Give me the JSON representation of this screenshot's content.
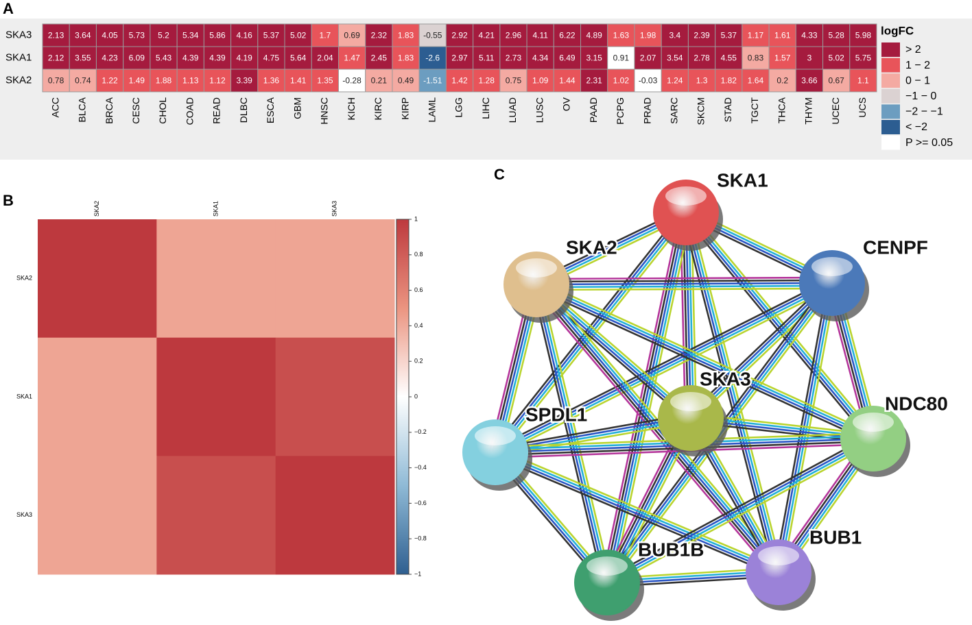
{
  "panels": [
    "A",
    "B",
    "C"
  ],
  "chart_data": [
    {
      "type": "heatmap",
      "rows": [
        "SKA3",
        "SKA1",
        "SKA2"
      ],
      "columns": [
        "ACC",
        "BLCA",
        "BRCA",
        "CESC",
        "CHOL",
        "COAD",
        "READ",
        "DLBC",
        "ESCA",
        "GBM",
        "HNSC",
        "KICH",
        "KIRC",
        "KIRP",
        "LAML",
        "LGG",
        "LIHC",
        "LUAD",
        "LUSC",
        "OV",
        "PAAD",
        "PCPG",
        "PRAD",
        "SARC",
        "SKCM",
        "STAD",
        "TGCT",
        "THCA",
        "THYM",
        "UCEC",
        "UCS"
      ],
      "values": [
        [
          2.13,
          3.64,
          4.05,
          5.73,
          5.2,
          5.34,
          5.86,
          4.16,
          5.37,
          5.02,
          1.7,
          0.69,
          2.32,
          1.83,
          -0.55,
          2.92,
          4.21,
          2.96,
          4.11,
          6.22,
          4.89,
          1.63,
          1.98,
          3.4,
          2.39,
          5.37,
          1.17,
          1.61,
          4.33,
          5.28,
          5.98
        ],
        [
          2.12,
          3.55,
          4.23,
          6.09,
          5.43,
          4.39,
          4.39,
          4.19,
          4.75,
          5.64,
          2.04,
          1.47,
          2.45,
          1.83,
          -2.6,
          2.97,
          5.11,
          2.73,
          4.34,
          6.49,
          3.15,
          0.91,
          2.07,
          3.54,
          2.78,
          4.55,
          0.83,
          1.57,
          3,
          5.02,
          5.75
        ],
        [
          0.78,
          0.74,
          1.22,
          1.49,
          1.88,
          1.13,
          1.12,
          3.39,
          1.36,
          1.41,
          1.35,
          -0.28,
          0.21,
          0.49,
          -1.51,
          1.42,
          1.28,
          0.75,
          1.09,
          1.44,
          2.31,
          1.02,
          -0.03,
          1.24,
          1.3,
          1.82,
          1.64,
          0.2,
          3.66,
          0.67,
          1.1
        ]
      ],
      "nonsignificant": [
        [
          2,
          11
        ],
        [
          1,
          21
        ],
        [
          2,
          22
        ]
      ],
      "legend": {
        "title": "logFC",
        "breaks": [
          2,
          1,
          0,
          -1,
          -2
        ],
        "entries": [
          {
            "label": "> 2",
            "color": "#a51b3e"
          },
          {
            "label": "1 − 2",
            "color": "#e8545a"
          },
          {
            "label": "0 − 1",
            "color": "#f4aaa2"
          },
          {
            "label": "−1 − 0",
            "color": "#dbd2d2"
          },
          {
            "label": "−2 − −1",
            "color": "#6c9dc0"
          },
          {
            "label": "< −2",
            "color": "#2c5d91"
          },
          {
            "label": "P >= 0.05",
            "color": "#ffffff"
          }
        ]
      }
    },
    {
      "type": "correlation",
      "rows": [
        "SKA2",
        "SKA1",
        "SKA3"
      ],
      "columns": [
        "SKA2",
        "SKA1",
        "SKA3"
      ],
      "values": [
        [
          1,
          0.42,
          0.42
        ],
        [
          0.42,
          1,
          0.88
        ],
        [
          0.42,
          0.88,
          1
        ]
      ],
      "zlim": [
        -1,
        1
      ],
      "colorscale": [
        [
          -1,
          "#2f5f90"
        ],
        [
          -0.5,
          "#8fbad6"
        ],
        [
          0,
          "#ffffff"
        ],
        [
          0.5,
          "#eb9480"
        ],
        [
          1,
          "#bd393e"
        ]
      ],
      "ticks": [
        1,
        0.8,
        0.6,
        0.4,
        0.2,
        0,
        {
          "value": -0.2,
          "label": "−0.2"
        },
        {
          "value": -0.4,
          "label": "−0.4"
        },
        {
          "value": -0.6,
          "label": "−0.6"
        },
        {
          "value": -0.8,
          "label": "−0.8"
        },
        {
          "value": -1,
          "label": "−1"
        }
      ]
    }
  ],
  "network": {
    "nodes": [
      {
        "label": "SKA1",
        "color": "#e05252"
      },
      {
        "label": "CENPF",
        "color": "#4b79b9"
      },
      {
        "label": "SKA2",
        "color": "#dfbf8e"
      },
      {
        "label": "SKA3",
        "color": "#a9b84a"
      },
      {
        "label": "SPDL1",
        "color": "#84d0df"
      },
      {
        "label": "NDC80",
        "color": "#93cf83"
      },
      {
        "label": "BUB1B",
        "color": "#3f9f6f"
      },
      {
        "label": "BUB1",
        "color": "#9b82d8"
      }
    ]
  }
}
